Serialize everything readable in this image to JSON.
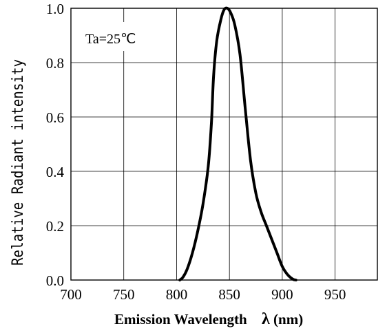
{
  "chart_data": {
    "type": "line",
    "title": "",
    "xlabel": "Emission Wavelength",
    "xlabel_symbol": "λ",
    "xlabel_unit": "(nm)",
    "ylabel": "Relative Radiant intensity",
    "annotation": "Ta=25℃",
    "xlim": [
      700,
      990
    ],
    "ylim": [
      0,
      1.0
    ],
    "x_ticks": [
      700,
      750,
      800,
      850,
      900,
      950
    ],
    "x_tick_labels": [
      "700",
      "750",
      "800",
      "850",
      "900",
      "950"
    ],
    "y_ticks": [
      0,
      0.2,
      0.4,
      0.6,
      0.8,
      1.0
    ],
    "y_tick_labels": [
      "0.0",
      "0.2",
      "0.4",
      "0.6",
      "0.8",
      "1.0"
    ],
    "grid": true,
    "series": [
      {
        "x": [
          803,
          806,
          810,
          815,
          820,
          825,
          830,
          833,
          835,
          838,
          842,
          845,
          848,
          851,
          855,
          860,
          865,
          870,
          875,
          880,
          885,
          890,
          895,
          900,
          905,
          910,
          913
        ],
        "y": [
          0.0,
          0.01,
          0.04,
          0.1,
          0.18,
          0.28,
          0.42,
          0.58,
          0.75,
          0.88,
          0.96,
          0.995,
          1.0,
          0.985,
          0.94,
          0.83,
          0.63,
          0.44,
          0.32,
          0.25,
          0.2,
          0.15,
          0.1,
          0.05,
          0.02,
          0.003,
          0.0
        ]
      }
    ],
    "colors": {
      "line": "#000000",
      "grid": "#000000",
      "frame": "#000000"
    }
  }
}
